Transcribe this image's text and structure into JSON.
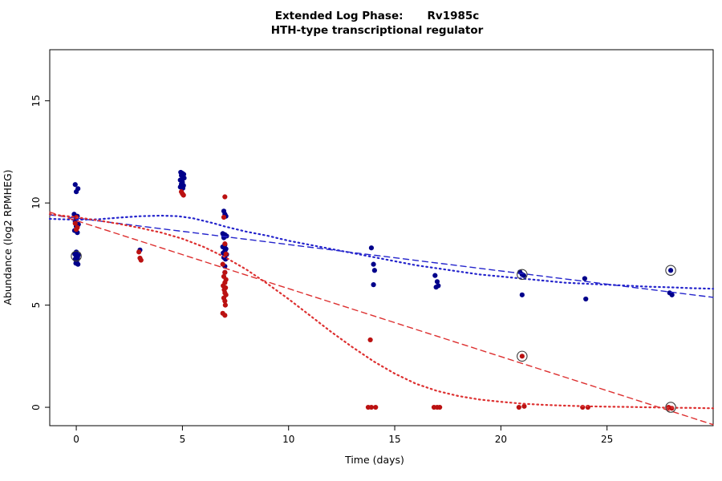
{
  "page": {
    "background": "#ffffff"
  },
  "chart_data": {
    "type": "scatter",
    "title_left": "Extended Log Phase:",
    "title_right": "Rv1985c",
    "subtitle": "HTH-type transcriptional regulator",
    "xlabel": "Time  (days)",
    "ylabel": "Abundance  (log2 RPMHEG)",
    "xlim": [
      -1.25,
      30
    ],
    "ylim": [
      -0.9,
      17.5
    ],
    "xticks": [
      0,
      5,
      10,
      15,
      20,
      25
    ],
    "yticks": [
      0,
      5,
      10,
      15
    ],
    "grid": false,
    "legend": "none",
    "colors": {
      "blue_points": "#00008B",
      "red_points": "#BB1111",
      "blue_line": "#2424CC",
      "red_line": "#DD3030",
      "highlight_ring": "#3a3a3a",
      "axis": "#000000"
    },
    "series": [
      {
        "name": "blue-condition",
        "color_key": "blue_points",
        "points": [
          [
            -0.05,
            10.9
          ],
          [
            0.08,
            10.7
          ],
          [
            0,
            10.55
          ],
          [
            -0.1,
            9.45
          ],
          [
            0.05,
            9.35
          ],
          [
            0,
            9.25
          ],
          [
            -0.05,
            9.1
          ],
          [
            0.1,
            8.95
          ],
          [
            0,
            8.85
          ],
          [
            -0.08,
            8.65
          ],
          [
            0.05,
            8.55
          ],
          [
            0,
            7.6
          ],
          [
            -0.07,
            7.5
          ],
          [
            0.1,
            7.45
          ],
          [
            0,
            7.4
          ],
          [
            0.06,
            7.3
          ],
          [
            -0.05,
            7.25
          ],
          [
            0.02,
            7.15
          ],
          [
            -0.02,
            7.05
          ],
          [
            0.08,
            7.0
          ],
          [
            3,
            7.7
          ],
          [
            4.92,
            11.5
          ],
          [
            5,
            11.45
          ],
          [
            5.06,
            11.4
          ],
          [
            4.95,
            11.35
          ],
          [
            5.02,
            11.3
          ],
          [
            5.08,
            11.22
          ],
          [
            4.9,
            11.12
          ],
          [
            5,
            11.02
          ],
          [
            4.95,
            10.92
          ],
          [
            5.05,
            10.85
          ],
          [
            4.9,
            10.78
          ],
          [
            5.02,
            10.72
          ],
          [
            6.95,
            9.6
          ],
          [
            7,
            9.45
          ],
          [
            7.05,
            9.35
          ],
          [
            6.9,
            8.5
          ],
          [
            7,
            8.45
          ],
          [
            7.08,
            8.38
          ],
          [
            6.95,
            8.3
          ],
          [
            7,
            7.95
          ],
          [
            6.9,
            7.85
          ],
          [
            7.05,
            7.75
          ],
          [
            7,
            7.65
          ],
          [
            6.92,
            7.55
          ],
          [
            7.08,
            7.48
          ],
          [
            7,
            7.4
          ],
          [
            6.95,
            7.33
          ],
          [
            7.03,
            7.25
          ],
          [
            7,
            6.9
          ],
          [
            7,
            6.6
          ],
          [
            13.9,
            7.8
          ],
          [
            14,
            7.0
          ],
          [
            14.05,
            6.7
          ],
          [
            14,
            6.0
          ],
          [
            16.9,
            6.45
          ],
          [
            17,
            6.15
          ],
          [
            17.05,
            5.95
          ],
          [
            16.95,
            5.88
          ],
          [
            20.9,
            6.62
          ],
          [
            21,
            6.5
          ],
          [
            21.08,
            6.45
          ],
          [
            21,
            5.5
          ],
          [
            23.95,
            6.3
          ],
          [
            24,
            5.3
          ],
          [
            28,
            6.7
          ],
          [
            27.95,
            5.6
          ],
          [
            28.06,
            5.5
          ]
        ]
      },
      {
        "name": "red-condition",
        "color_key": "red_points",
        "points": [
          [
            0,
            9.3
          ],
          [
            -0.05,
            9.0
          ],
          [
            0.05,
            8.8
          ],
          [
            0,
            8.7
          ],
          [
            2.95,
            7.6
          ],
          [
            3,
            7.3
          ],
          [
            3.05,
            7.2
          ],
          [
            4.95,
            10.55
          ],
          [
            5,
            10.45
          ],
          [
            5.05,
            10.38
          ],
          [
            7,
            10.3
          ],
          [
            6.95,
            9.3
          ],
          [
            7,
            8.0
          ],
          [
            7.05,
            7.5
          ],
          [
            6.9,
            7.0
          ],
          [
            7,
            6.6
          ],
          [
            6.95,
            6.4
          ],
          [
            7.05,
            6.25
          ],
          [
            7,
            6.1
          ],
          [
            6.92,
            5.95
          ],
          [
            7.03,
            5.85
          ],
          [
            6.97,
            5.75
          ],
          [
            7,
            5.6
          ],
          [
            7.05,
            5.5
          ],
          [
            6.95,
            5.35
          ],
          [
            7,
            5.2
          ],
          [
            7.02,
            5.0
          ],
          [
            6.9,
            4.6
          ],
          [
            7,
            4.5
          ],
          [
            13.85,
            3.3
          ],
          [
            13.75,
            0.0
          ],
          [
            13.9,
            0.0
          ],
          [
            14.1,
            0.0
          ],
          [
            16.85,
            0.0
          ],
          [
            17,
            0.0
          ],
          [
            17.12,
            0.0
          ],
          [
            21,
            2.5
          ],
          [
            20.85,
            0.0
          ],
          [
            21.1,
            0.05
          ],
          [
            23.85,
            0.0
          ],
          [
            24.1,
            0.0
          ],
          [
            27.9,
            0.0
          ],
          [
            28.05,
            -0.05
          ]
        ]
      }
    ],
    "highlighted_points": [
      {
        "series": "blue-condition",
        "x": 0,
        "y": 7.4
      },
      {
        "series": "blue-condition",
        "x": 21,
        "y": 6.5
      },
      {
        "series": "blue-condition",
        "x": 28,
        "y": 6.7
      },
      {
        "series": "red-condition",
        "x": 21,
        "y": 2.5
      },
      {
        "series": "red-condition",
        "x": 28,
        "y": 0.0
      }
    ],
    "trend_lines": [
      {
        "name": "blue-linear-fit",
        "style": "dashed",
        "color_key": "blue_line",
        "points": [
          [
            -1.25,
            9.42
          ],
          [
            30,
            5.38
          ]
        ]
      },
      {
        "name": "blue-smooth-fit",
        "style": "dotted",
        "color_key": "blue_line",
        "points": [
          [
            -1.25,
            9.22
          ],
          [
            0,
            9.18
          ],
          [
            1,
            9.2
          ],
          [
            2,
            9.28
          ],
          [
            3,
            9.35
          ],
          [
            4,
            9.38
          ],
          [
            4.8,
            9.35
          ],
          [
            5.5,
            9.25
          ],
          [
            6.5,
            9.0
          ],
          [
            7,
            8.85
          ],
          [
            8,
            8.6
          ],
          [
            9,
            8.4
          ],
          [
            10,
            8.15
          ],
          [
            11,
            7.95
          ],
          [
            12,
            7.75
          ],
          [
            13,
            7.55
          ],
          [
            14,
            7.35
          ],
          [
            15,
            7.15
          ],
          [
            16,
            6.95
          ],
          [
            17,
            6.8
          ],
          [
            18,
            6.65
          ],
          [
            19,
            6.5
          ],
          [
            20,
            6.4
          ],
          [
            21,
            6.3
          ],
          [
            22,
            6.2
          ],
          [
            23,
            6.1
          ],
          [
            24,
            6.05
          ],
          [
            25,
            6.0
          ],
          [
            26,
            5.95
          ],
          [
            27,
            5.9
          ],
          [
            28,
            5.87
          ],
          [
            29,
            5.83
          ],
          [
            30,
            5.8
          ]
        ]
      },
      {
        "name": "red-linear-fit",
        "style": "dashed",
        "color_key": "red_line",
        "points": [
          [
            -1.25,
            9.55
          ],
          [
            30,
            -0.85
          ]
        ]
      },
      {
        "name": "red-smooth-fit",
        "style": "dotted",
        "color_key": "red_line",
        "points": [
          [
            -1.25,
            9.45
          ],
          [
            0,
            9.3
          ],
          [
            1,
            9.15
          ],
          [
            2,
            8.98
          ],
          [
            3,
            8.78
          ],
          [
            4,
            8.55
          ],
          [
            5,
            8.25
          ],
          [
            6,
            7.85
          ],
          [
            7,
            7.35
          ],
          [
            8,
            6.75
          ],
          [
            9,
            6.05
          ],
          [
            10,
            5.3
          ],
          [
            11,
            4.5
          ],
          [
            12,
            3.7
          ],
          [
            13,
            2.95
          ],
          [
            14,
            2.25
          ],
          [
            15,
            1.65
          ],
          [
            16,
            1.15
          ],
          [
            17,
            0.8
          ],
          [
            18,
            0.55
          ],
          [
            19,
            0.38
          ],
          [
            20,
            0.27
          ],
          [
            21,
            0.18
          ],
          [
            22,
            0.12
          ],
          [
            23,
            0.08
          ],
          [
            24,
            0.05
          ],
          [
            25,
            0.03
          ],
          [
            26,
            0.02
          ],
          [
            27,
            0.0
          ],
          [
            28,
            -0.02
          ],
          [
            29,
            -0.03
          ],
          [
            30,
            -0.05
          ]
        ]
      }
    ]
  }
}
